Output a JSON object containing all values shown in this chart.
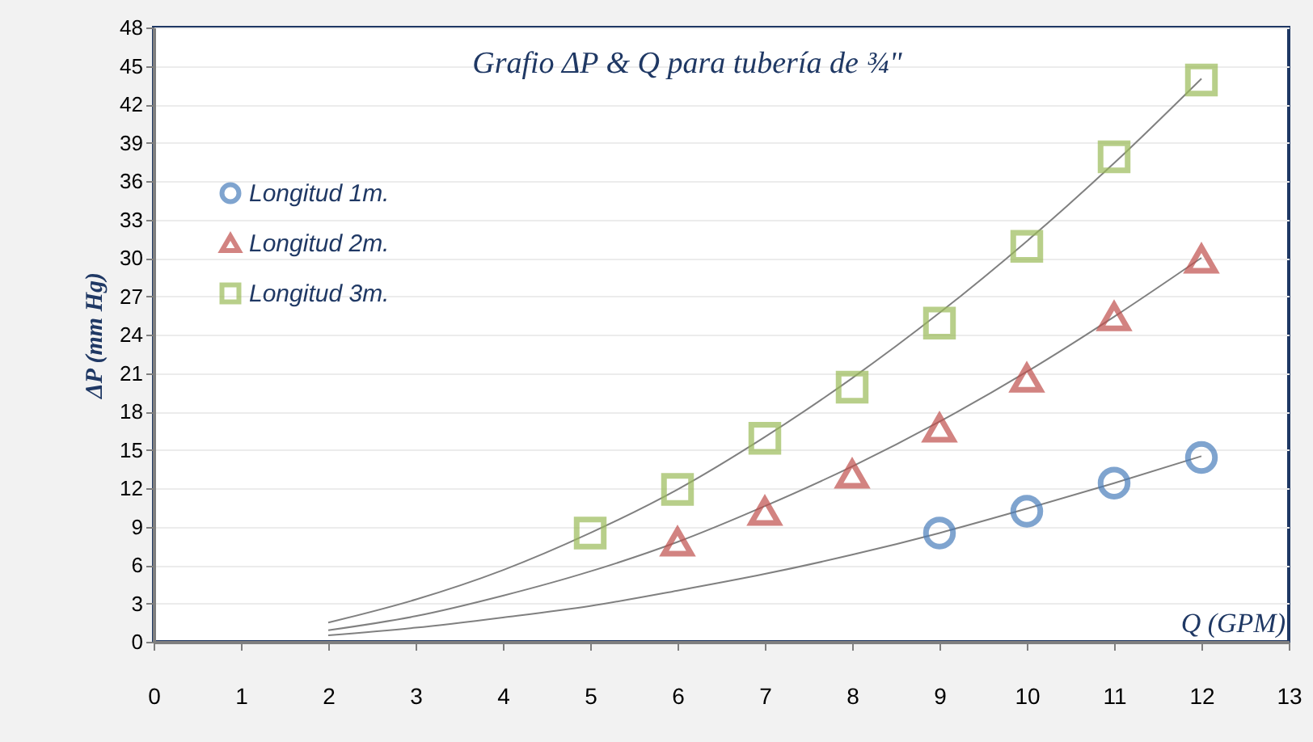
{
  "chart_data": {
    "type": "scatter",
    "title": "Grafio ΔP & Q para tubería de  ¾\"",
    "xlabel": "Q (GPM)",
    "ylabel": "ΔP (mm Hg)",
    "xlim": [
      0,
      13
    ],
    "xticks": [
      0,
      1,
      2,
      3,
      4,
      5,
      6,
      7,
      8,
      9,
      10,
      11,
      12,
      13
    ],
    "ylim": [
      0,
      48
    ],
    "yticks": [
      0,
      3,
      6,
      9,
      12,
      15,
      18,
      21,
      24,
      27,
      30,
      33,
      36,
      39,
      42,
      45,
      48
    ],
    "grid": "y",
    "legend": "top left",
    "series": [
      {
        "name": "Longitud 1m.",
        "color": "#4a7ebb",
        "marker": "circle",
        "x": [
          9,
          10,
          11,
          12
        ],
        "values": [
          8.5,
          10.2,
          12.4,
          14.4
        ]
      },
      {
        "name": "Longitud 2m.",
        "color": "#c0504d",
        "marker": "triangle",
        "x": [
          6,
          7,
          8,
          9,
          10,
          11,
          12
        ],
        "values": [
          7.8,
          10.2,
          13.1,
          16.7,
          20.6,
          25.4,
          29.9
        ]
      },
      {
        "name": "Longitud 3m.",
        "color": "#9bbb59",
        "marker": "square",
        "x": [
          5,
          6,
          7,
          8,
          9,
          10,
          11,
          12
        ],
        "values": [
          8.5,
          11.9,
          15.9,
          19.9,
          24.9,
          30.9,
          37.9,
          43.9
        ]
      },
      {
        "type": "line",
        "color": "#808080",
        "x": [
          2,
          3,
          4,
          5,
          6,
          7,
          8,
          9,
          10,
          11,
          12
        ],
        "values": [
          0.5,
          1.1,
          1.9,
          2.8,
          4.0,
          5.3,
          6.8,
          8.5,
          10.4,
          12.4,
          14.5
        ]
      },
      {
        "type": "line",
        "color": "#808080",
        "x": [
          2,
          3,
          4,
          5,
          6,
          7,
          8,
          9,
          10,
          11,
          12
        ],
        "values": [
          0.9,
          2.0,
          3.6,
          5.5,
          7.8,
          10.6,
          13.7,
          17.2,
          21.1,
          25.4,
          30.0
        ]
      },
      {
        "type": "line",
        "color": "#808080",
        "x": [
          2,
          3,
          4,
          5,
          6,
          7,
          8,
          9,
          10,
          11,
          12
        ],
        "values": [
          1.5,
          3.3,
          5.6,
          8.5,
          11.9,
          16.0,
          20.6,
          25.7,
          31.3,
          37.4,
          44.0
        ]
      }
    ]
  }
}
